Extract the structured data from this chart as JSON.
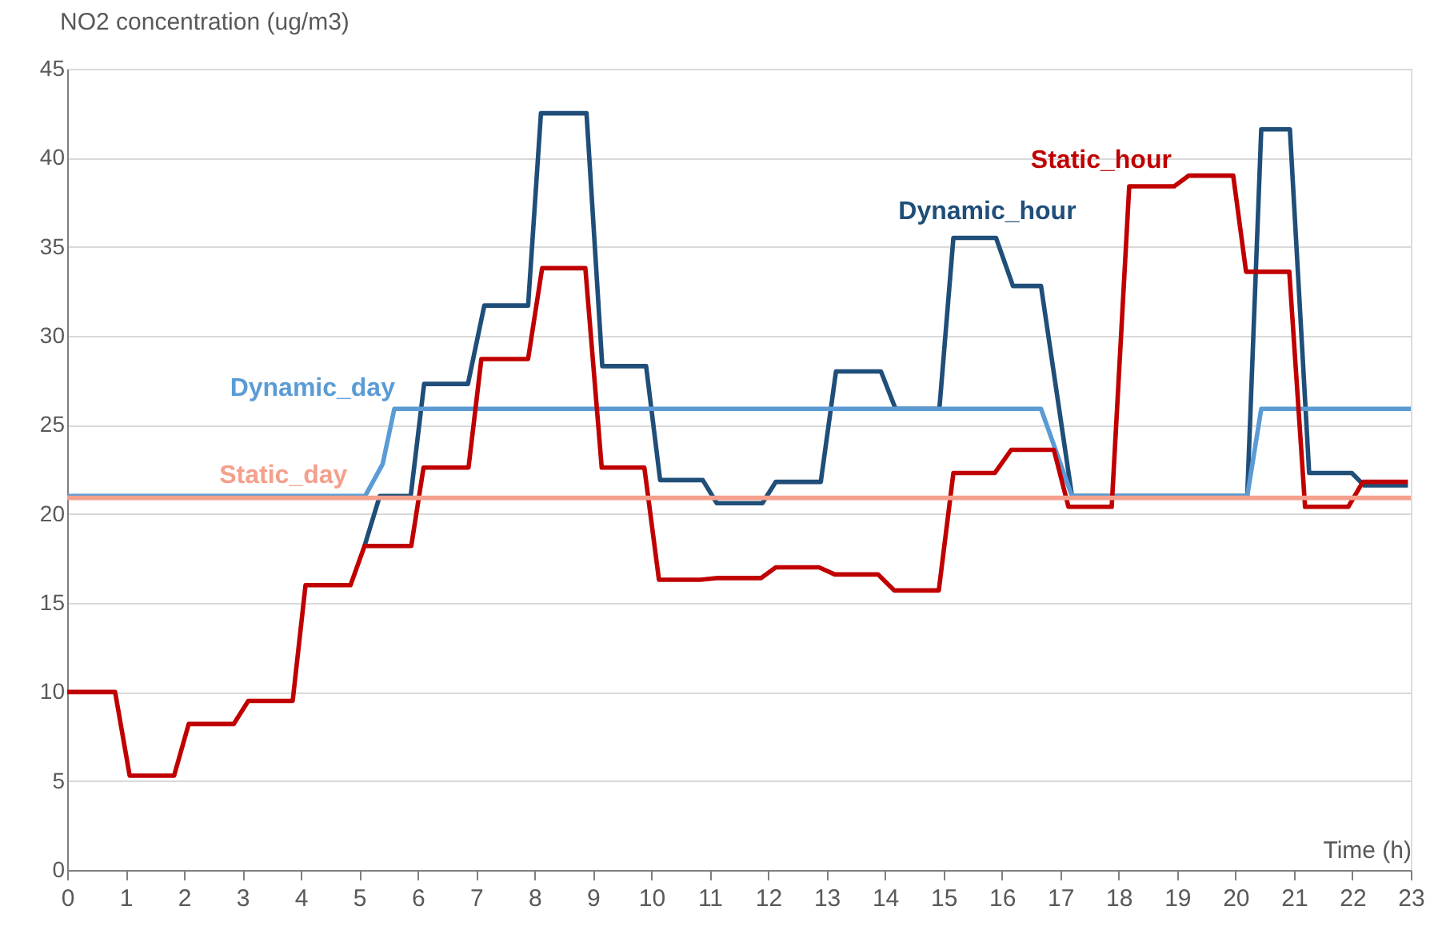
{
  "chart_data": {
    "type": "line",
    "xlabel": "Time (h)",
    "ylabel": "NO2 concentration (ug/m3)",
    "xlim": [
      0,
      23
    ],
    "xticks": [
      0,
      1,
      2,
      3,
      4,
      5,
      6,
      7,
      8,
      9,
      10,
      11,
      12,
      13,
      14,
      15,
      16,
      17,
      18,
      19,
      20,
      21,
      22,
      23
    ],
    "ylim": [
      0,
      45
    ],
    "yticks": [
      0,
      5,
      10,
      15,
      20,
      25,
      30,
      35,
      40,
      45
    ],
    "grid": "y",
    "legend": false,
    "line_style": "solid",
    "marker": "none",
    "series": [
      {
        "name": "Dynamic_hour",
        "color": "#1f4e79",
        "x": [
          5.09,
          5.35,
          5.88,
          6.11,
          6.86,
          7.14,
          7.89,
          8.11,
          8.89,
          9.16,
          9.91,
          10.15,
          10.88,
          11.12,
          11.9,
          12.13,
          12.9,
          13.16,
          13.93,
          14.18,
          14.93,
          15.17,
          15.9,
          16.19,
          16.67,
          17.2,
          20.2,
          20.44,
          20.93,
          21.26,
          21.99,
          22.2,
          22.95
        ],
        "values": [
          18.2,
          21.0,
          21.0,
          27.3,
          27.3,
          31.7,
          31.7,
          42.5,
          42.5,
          28.3,
          28.3,
          21.9,
          21.9,
          20.6,
          20.6,
          21.8,
          21.8,
          28.0,
          28.0,
          25.9,
          25.9,
          35.5,
          35.5,
          32.8,
          32.8,
          21.0,
          21.0,
          41.6,
          41.6,
          22.3,
          22.3,
          21.6,
          21.6
        ]
      },
      {
        "name": "Dynamic_day",
        "color": "#5b9bd5",
        "x": [
          0,
          5.1,
          5.4,
          5.6,
          16.67,
          17.2,
          20.2,
          20.44,
          23
        ],
        "values": [
          21.0,
          21.0,
          22.8,
          25.9,
          25.9,
          21.0,
          21.0,
          25.9,
          25.9
        ]
      },
      {
        "name": "Static_hour",
        "color": "#c00000",
        "x": [
          0,
          0.82,
          1.07,
          1.83,
          2.08,
          2.85,
          3.1,
          3.86,
          4.08,
          4.85,
          5.09,
          5.89,
          6.1,
          6.87,
          7.09,
          7.89,
          8.13,
          8.87,
          9.15,
          9.88,
          10.13,
          10.84,
          11.14,
          11.88,
          12.13,
          12.87,
          13.14,
          13.88,
          14.16,
          14.92,
          15.17,
          15.88,
          16.16,
          16.89,
          17.14,
          17.88,
          18.18,
          18.95,
          19.2,
          19.96,
          20.18,
          20.92,
          21.19,
          21.93,
          22.18,
          22.95
        ],
        "values": [
          10,
          10,
          5.3,
          5.3,
          8.2,
          8.2,
          9.5,
          9.5,
          16,
          16,
          18.2,
          18.2,
          22.6,
          22.6,
          28.7,
          28.7,
          33.8,
          33.8,
          22.6,
          22.6,
          16.3,
          16.3,
          16.4,
          16.4,
          17.0,
          17.0,
          16.6,
          16.6,
          15.7,
          15.7,
          22.3,
          22.3,
          23.6,
          23.6,
          20.4,
          20.4,
          38.4,
          38.4,
          39.0,
          39.0,
          33.6,
          33.6,
          20.4,
          20.4,
          21.8,
          21.8
        ]
      },
      {
        "name": "Static_day",
        "color": "#f4a08c",
        "x": [
          0,
          23
        ],
        "values": [
          20.9,
          20.9
        ]
      }
    ]
  }
}
